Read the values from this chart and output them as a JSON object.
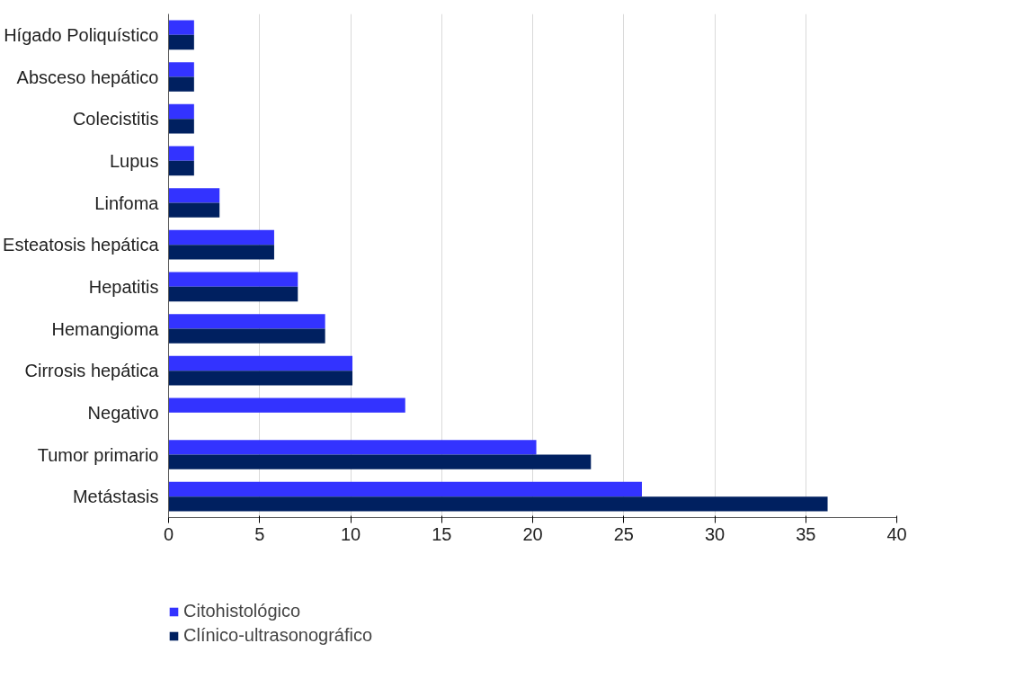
{
  "chart_data": {
    "type": "bar",
    "orientation": "horizontal",
    "categories": [
      "Hígado Poliquístico",
      "Absceso hepático",
      "Colecistitis",
      "Lupus",
      "Linfoma",
      "Esteatosis hepática",
      "Hepatitis",
      "Hemangioma",
      "Cirrosis hepática",
      "Negativo",
      "Tumor primario",
      "Metástasis"
    ],
    "series": [
      {
        "name": "Citohistológico",
        "color": "#3333ff",
        "values": [
          1.4,
          1.4,
          1.4,
          1.4,
          2.8,
          5.8,
          7.1,
          8.6,
          10.1,
          13.0,
          20.2,
          26.0
        ]
      },
      {
        "name": "Clínico-ultrasonográfico",
        "color": "#002060",
        "values": [
          1.4,
          1.4,
          1.4,
          1.4,
          2.8,
          5.8,
          7.1,
          8.6,
          10.1,
          null,
          23.2,
          36.2
        ]
      }
    ],
    "xlim": [
      0,
      40
    ],
    "xticks": [
      0,
      5,
      10,
      15,
      20,
      25,
      30,
      35,
      40
    ],
    "grid": "x",
    "legend": "bottom left"
  }
}
